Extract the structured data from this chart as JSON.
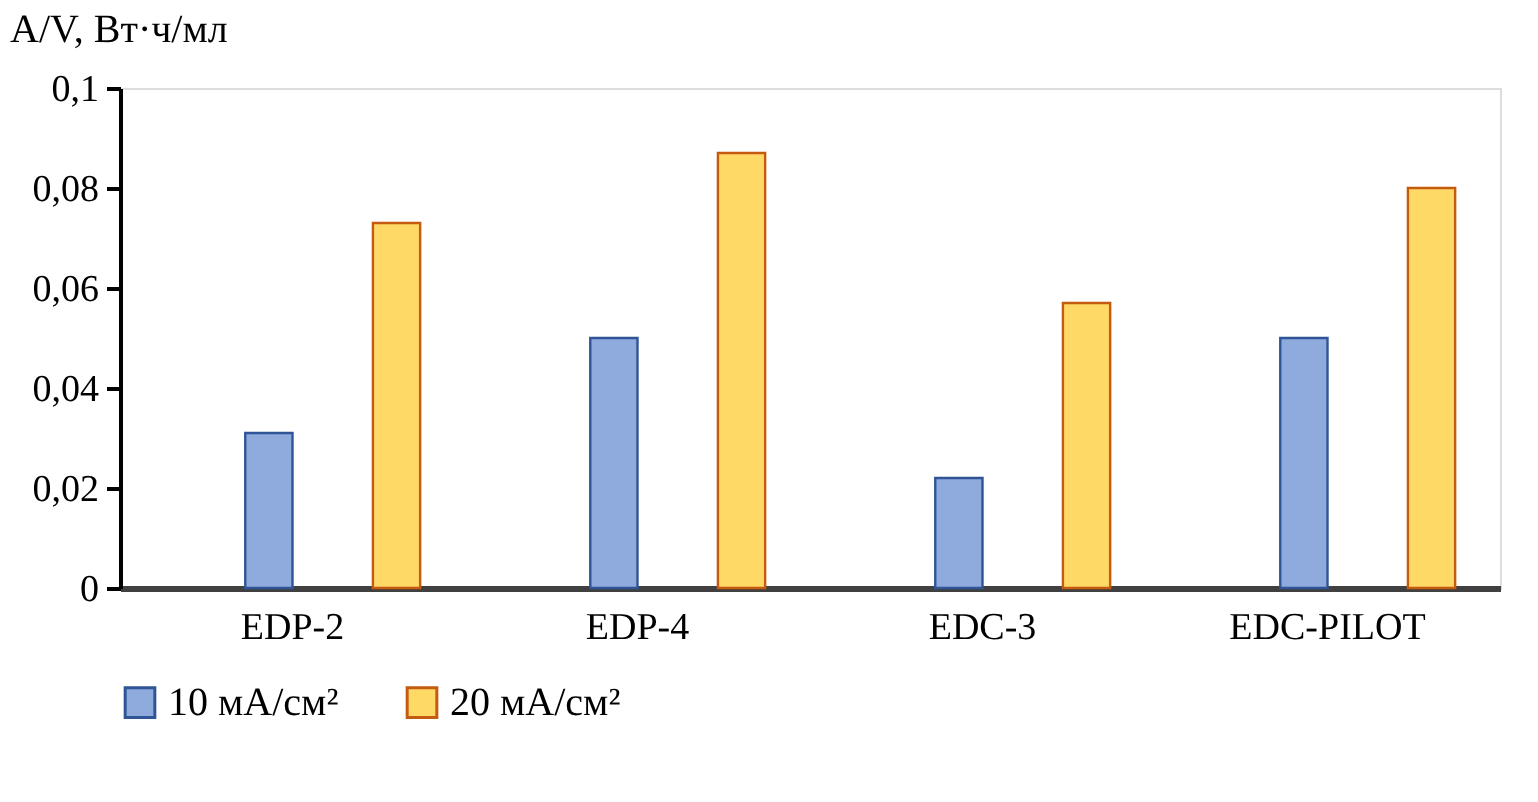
{
  "chart_data": {
    "type": "bar",
    "ylabel": "A/V, Вт·ч/мл",
    "categories": [
      "EDP-2",
      "EDP-4",
      "EDC-3",
      "EDC-PILOT"
    ],
    "series": [
      {
        "name": "10 мА/см²",
        "color": "#8faadc",
        "values": [
          0.031,
          0.05,
          0.022,
          0.05
        ]
      },
      {
        "name": "20 мА/см²",
        "color": "#ffd966",
        "values": [
          0.073,
          0.087,
          0.057,
          0.08
        ]
      }
    ],
    "ylim": [
      0,
      0.1
    ],
    "yticks": [
      {
        "value": 0,
        "label": "0"
      },
      {
        "value": 0.02,
        "label": "0,02"
      },
      {
        "value": 0.04,
        "label": "0,04"
      },
      {
        "value": 0.06,
        "label": "0,06"
      },
      {
        "value": 0.08,
        "label": "0,08"
      },
      {
        "value": 0.1,
        "label": "0,1"
      }
    ],
    "grid": false,
    "legend": "bottom"
  }
}
